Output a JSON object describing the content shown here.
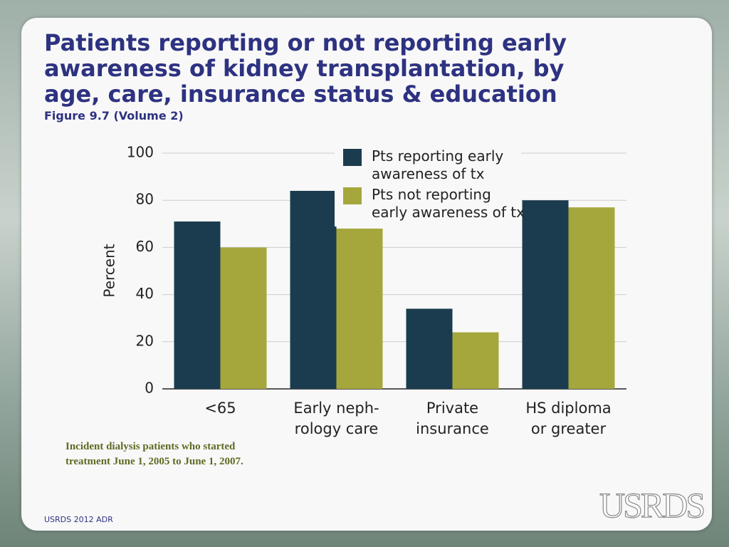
{
  "chart_data": {
    "type": "bar",
    "title": "Patients reporting or not reporting early awareness of kidney transplantation, by age, care, insurance status & education",
    "subtitle": "Figure 9.7 (Volume 2)",
    "y_label": "Percent",
    "categories": [
      "<65",
      "Early neph-\nrology care",
      "Private\ninsurance",
      "HS diploma\nor greater"
    ],
    "series": [
      {
        "name": "Pts reporting early\nawareness of tx",
        "color": "#1b3c4e",
        "values": [
          71,
          84,
          34,
          80
        ]
      },
      {
        "name": "Pts not reporting\nearly awareness of tx",
        "color": "#a5a73d",
        "values": [
          60,
          68,
          24,
          77
        ]
      }
    ],
    "ylim": [
      0,
      100
    ],
    "yticks": [
      0,
      20,
      40,
      60,
      80,
      100
    ],
    "grid": true,
    "legend": "top-right"
  },
  "note": "Incident dialysis patients who started\ntreatment June 1, 2005 to June 1, 2007.",
  "footer": "USRDS 2012 ADR",
  "logo": "USRDS"
}
